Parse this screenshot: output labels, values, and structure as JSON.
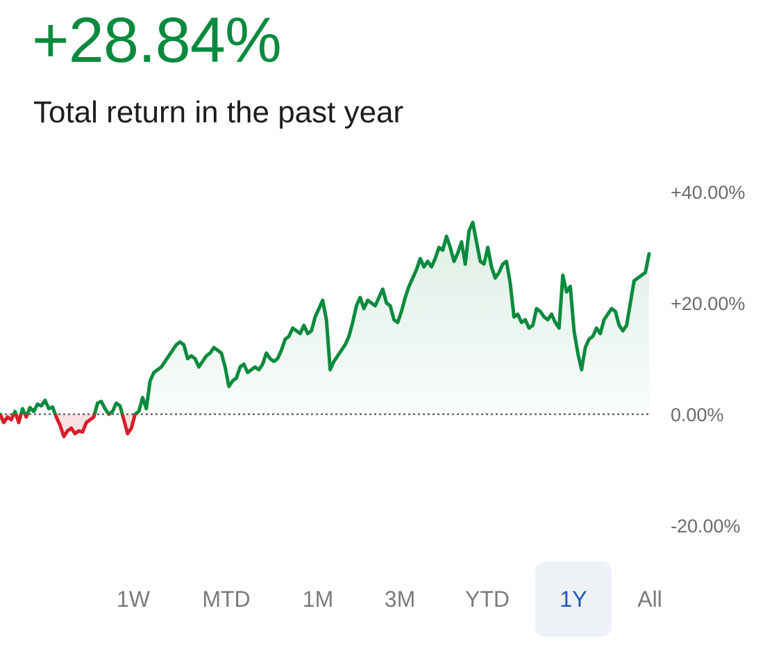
{
  "headline": {
    "value": "+28.84%",
    "subtitle": "Total return in the past year"
  },
  "colors": {
    "positive": "#0a8a3e",
    "negative": "#d81c2a",
    "active_range": "#1d56b8",
    "active_range_bg": "#eef1f6"
  },
  "ranges": [
    {
      "label": "1W",
      "active": false
    },
    {
      "label": "MTD",
      "active": false
    },
    {
      "label": "1M",
      "active": false
    },
    {
      "label": "3M",
      "active": false
    },
    {
      "label": "YTD",
      "active": false
    },
    {
      "label": "1Y",
      "active": true
    },
    {
      "label": "All",
      "active": false
    }
  ],
  "chart_data": {
    "type": "line",
    "ylim": [
      -20,
      40
    ],
    "yticks": [
      40,
      20,
      0,
      -20
    ],
    "ytick_labels": [
      "+40.00%",
      "+20.00%",
      "0.00%",
      "-20.00%"
    ],
    "baseline": 0,
    "series": [
      {
        "values": [
          0.0,
          -1.5,
          -0.5,
          -1.0,
          0.5,
          -1.5,
          1.0,
          -0.5,
          1.2,
          0.5,
          1.8,
          1.5,
          2.5,
          1.0,
          1.3,
          -0.5,
          -2.0,
          -4.0,
          -3.0,
          -2.5,
          -3.5,
          -3.0,
          -3.2,
          -1.5,
          -1.0,
          -0.5,
          2.0,
          2.3,
          1.0,
          0.0,
          0.5,
          2.0,
          1.5,
          -1.0,
          -3.5,
          -2.5,
          0.0,
          0.5,
          3.0,
          1.0,
          6.0,
          7.5,
          8.0,
          8.5,
          9.5,
          10.5,
          11.5,
          12.5,
          13.0,
          12.5,
          10.0,
          10.5,
          10.0,
          8.5,
          9.5,
          10.5,
          11.0,
          12.0,
          11.5,
          11.0,
          8.5,
          5.0,
          6.0,
          6.5,
          8.5,
          9.0,
          7.5,
          8.0,
          8.5,
          8.0,
          9.0,
          11.0,
          10.0,
          9.5,
          10.0,
          11.5,
          13.5,
          14.0,
          15.5,
          15.0,
          14.5,
          16.0,
          14.5,
          15.0,
          17.5,
          19.0,
          20.5,
          17.0,
          8.0,
          9.5,
          10.5,
          11.5,
          12.5,
          14.0,
          16.5,
          19.5,
          21.0,
          19.0,
          20.5,
          20.0,
          19.5,
          21.0,
          22.5,
          20.0,
          19.5,
          17.0,
          16.5,
          18.5,
          21.0,
          23.0,
          24.5,
          26.0,
          28.0,
          26.5,
          27.5,
          26.5,
          28.0,
          30.0,
          29.5,
          32.0,
          30.0,
          27.5,
          29.0,
          31.0,
          27.0,
          33.0,
          34.5,
          31.0,
          27.5,
          27.0,
          30.0,
          26.5,
          24.5,
          25.5,
          27.0,
          27.5,
          23.5,
          17.5,
          18.0,
          16.5,
          17.0,
          15.5,
          16.0,
          19.0,
          18.5,
          17.5,
          17.0,
          18.0,
          16.5,
          15.5,
          25.0,
          22.0,
          23.0,
          15.0,
          11.0,
          8.0,
          12.0,
          13.5,
          14.0,
          15.5,
          14.5,
          17.0,
          18.0,
          19.0,
          18.5,
          16.0,
          15.0,
          16.0,
          20.0,
          24.0,
          24.5,
          25.0,
          25.5,
          28.84
        ]
      }
    ]
  }
}
